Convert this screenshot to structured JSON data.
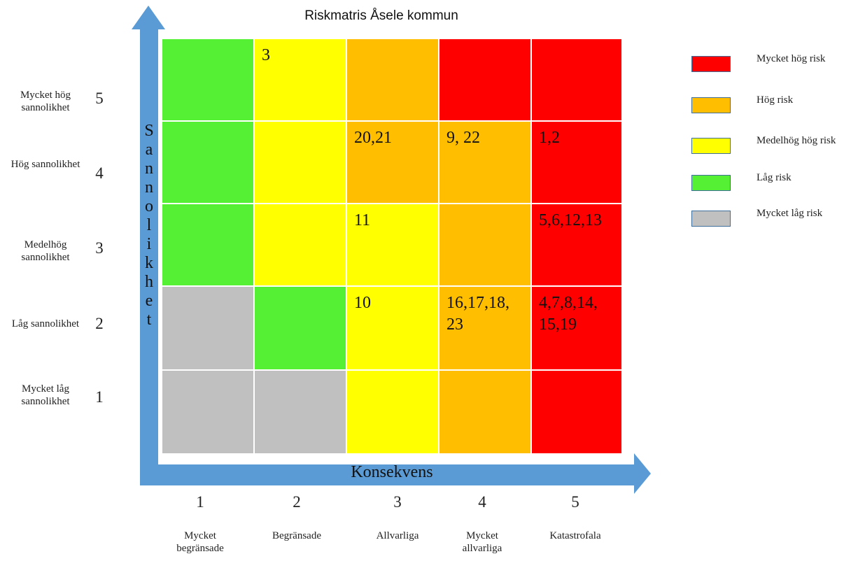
{
  "title": "Riskmatris Åsele kommun",
  "x_axis": {
    "title": "Konsekvens",
    "levels": [
      {
        "num": "1",
        "label": "Mycket begränsade"
      },
      {
        "num": "2",
        "label": "Begränsade"
      },
      {
        "num": "3",
        "label": "Allvarliga"
      },
      {
        "num": "4",
        "label": "Mycket allvarliga"
      },
      {
        "num": "5",
        "label": "Katastrofala"
      }
    ]
  },
  "y_axis": {
    "title": "Sannolikhet",
    "levels": [
      {
        "num": "5",
        "label": "Mycket hög sannolikhet"
      },
      {
        "num": "4",
        "label": "Hög sannolikhet"
      },
      {
        "num": "3",
        "label": "Medelhög sannolikhet"
      },
      {
        "num": "2",
        "label": "Låg sannolikhet"
      },
      {
        "num": "1",
        "label": "Mycket låg sannolikhet"
      }
    ]
  },
  "colors": {
    "red": "#ff0000",
    "orange": "#ffbf00",
    "yellow": "#ffff00",
    "green": "#55f033",
    "gray": "#c0c0c0",
    "arrow": "#5b9bd5"
  },
  "matrix": [
    {
      "likelihood": "5",
      "cells": [
        {
          "color": "green",
          "ids": ""
        },
        {
          "color": "yellow",
          "ids": "3"
        },
        {
          "color": "orange",
          "ids": ""
        },
        {
          "color": "red",
          "ids": ""
        },
        {
          "color": "red",
          "ids": ""
        }
      ]
    },
    {
      "likelihood": "4",
      "cells": [
        {
          "color": "green",
          "ids": ""
        },
        {
          "color": "yellow",
          "ids": ""
        },
        {
          "color": "orange",
          "ids": "20,21"
        },
        {
          "color": "orange",
          "ids": "9, 22"
        },
        {
          "color": "red",
          "ids": "1,2"
        }
      ]
    },
    {
      "likelihood": "3",
      "cells": [
        {
          "color": "green",
          "ids": ""
        },
        {
          "color": "yellow",
          "ids": ""
        },
        {
          "color": "yellow",
          "ids": "11"
        },
        {
          "color": "orange",
          "ids": ""
        },
        {
          "color": "red",
          "ids": "5,6,12,13"
        }
      ]
    },
    {
      "likelihood": "2",
      "cells": [
        {
          "color": "gray",
          "ids": ""
        },
        {
          "color": "green",
          "ids": ""
        },
        {
          "color": "yellow",
          "ids": "10"
        },
        {
          "color": "orange",
          "ids": "16,17,18,\n23"
        },
        {
          "color": "red",
          "ids": "4,7,8,14,\n15,19"
        }
      ]
    },
    {
      "likelihood": "1",
      "cells": [
        {
          "color": "gray",
          "ids": ""
        },
        {
          "color": "gray",
          "ids": ""
        },
        {
          "color": "yellow",
          "ids": ""
        },
        {
          "color": "orange",
          "ids": ""
        },
        {
          "color": "red",
          "ids": ""
        }
      ]
    }
  ],
  "legend": [
    {
      "color": "red",
      "label": "Mycket hög risk"
    },
    {
      "color": "orange",
      "label": "Hög risk"
    },
    {
      "color": "yellow",
      "label": "Medelhög hög risk"
    },
    {
      "color": "green",
      "label": "Låg risk"
    },
    {
      "color": "gray",
      "label": "Mycket låg risk"
    }
  ]
}
